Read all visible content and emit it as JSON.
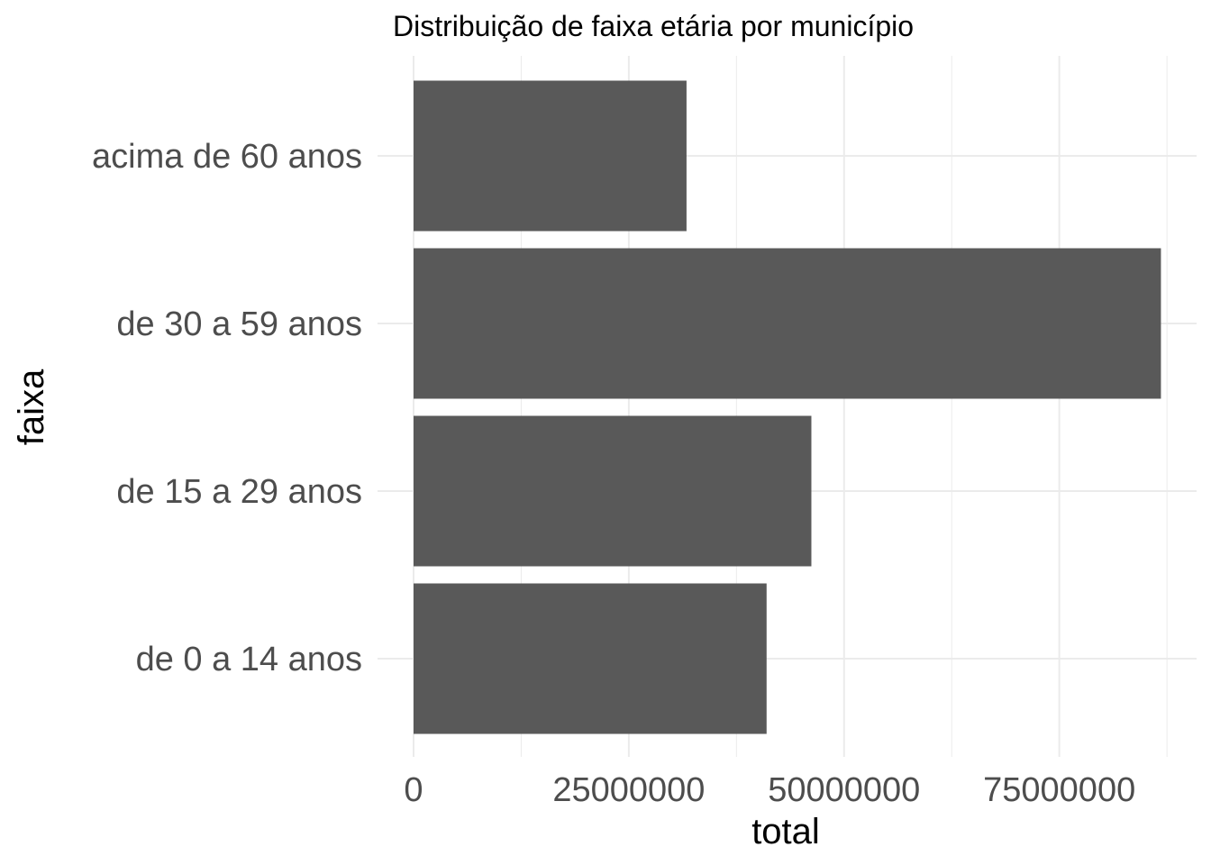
{
  "chart_data": {
    "type": "bar",
    "orientation": "horizontal",
    "title": "Distribuição de faixa etária por município",
    "xlabel": "total",
    "ylabel": "faixa",
    "categories": [
      "de 0 a 14 anos",
      "de 15 a 29 anos",
      "de 30 a 59 anos",
      "acima de 60 anos"
    ],
    "values": [
      41000000,
      46200000,
      86800000,
      31700000
    ],
    "xlim": [
      0,
      87800000
    ],
    "xticks": [
      0,
      25000000,
      50000000,
      75000000
    ],
    "xtick_labels": [
      "0",
      "25000000",
      "50000000",
      "75000000"
    ],
    "grid": true,
    "legend": "none",
    "bar_color": "#595959"
  }
}
